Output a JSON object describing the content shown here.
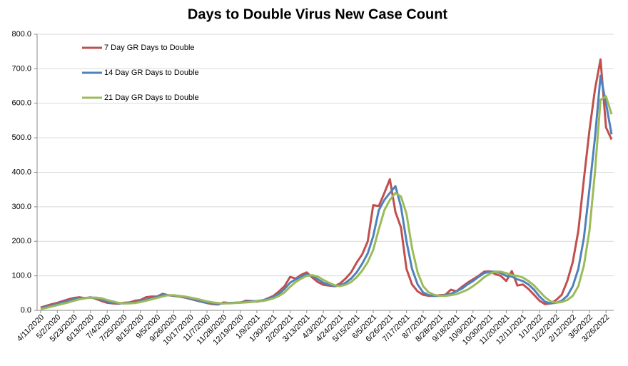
{
  "chart_data": {
    "type": "line",
    "title": "Days to Double Virus New Case Count",
    "categories": [
      "4/11/2020",
      null,
      null,
      "5/2/2020",
      null,
      null,
      "5/23/2020",
      null,
      null,
      "6/13/2020",
      null,
      null,
      "7/4/2020",
      null,
      null,
      "7/25/2020",
      null,
      null,
      "8/15/2020",
      null,
      null,
      "9/5/2020",
      null,
      null,
      "9/26/2020",
      null,
      null,
      "10/17/2020",
      null,
      null,
      "11/7/2020",
      null,
      null,
      "11/28/2020",
      null,
      null,
      "12/19/2020",
      null,
      null,
      "1/9/2021",
      null,
      null,
      "1/30/2021",
      null,
      null,
      "2/20/2021",
      null,
      null,
      "3/13/2021",
      null,
      null,
      "4/3/2021",
      null,
      null,
      "4/24/2021",
      null,
      null,
      "5/15/2021",
      null,
      null,
      "6/5/2021",
      null,
      null,
      "6/26/2021",
      null,
      null,
      "7/17/2021",
      null,
      null,
      "8/7/2021",
      null,
      null,
      "8/28/2021",
      null,
      null,
      "9/18/2021",
      null,
      null,
      "10/9/2021",
      null,
      null,
      "10/30/2021",
      null,
      null,
      "11/20/2021",
      null,
      null,
      "12/11/2021",
      null,
      null,
      "1/1/2022",
      null,
      null,
      "1/22/2022",
      null,
      null,
      "2/12/2022",
      null,
      null,
      "3/5/2022",
      null,
      null,
      "3/26/2022",
      null
    ],
    "series": [
      {
        "name": "7 Day GR Days to Double",
        "color": "#c0504d",
        "values": [
          8,
          13,
          18,
          22,
          27,
          32,
          36,
          38,
          35,
          38,
          33,
          27,
          22,
          20,
          19,
          22,
          23,
          28,
          30,
          38,
          40,
          40,
          48,
          44,
          42,
          40,
          37,
          33,
          29,
          25,
          21,
          18,
          17,
          23,
          21,
          22,
          22,
          28,
          27,
          25,
          28,
          35,
          42,
          55,
          70,
          97,
          92,
          103,
          110,
          95,
          82,
          74,
          72,
          70,
          78,
          92,
          110,
          138,
          162,
          200,
          305,
          302,
          340,
          380,
          285,
          240,
          120,
          75,
          55,
          45,
          42,
          42,
          44,
          45,
          60,
          55,
          68,
          80,
          90,
          100,
          112,
          113,
          105,
          100,
          85,
          114,
          72,
          75,
          62,
          45,
          28,
          18,
          20,
          30,
          45,
          85,
          140,
          230,
          380,
          520,
          640,
          727,
          530,
          495
        ]
      },
      {
        "name": "14 Day GR Days to Double",
        "color": "#4f81bd",
        "values": [
          6,
          10,
          14,
          19,
          23,
          28,
          32,
          35,
          36,
          37,
          35,
          31,
          26,
          22,
          20,
          20,
          21,
          23,
          27,
          31,
          35,
          39,
          45,
          44,
          43,
          41,
          38,
          34,
          30,
          26,
          22,
          20,
          19,
          20,
          21,
          22,
          23,
          25,
          26,
          27,
          29,
          33,
          39,
          48,
          62,
          80,
          90,
          98,
          104,
          100,
          90,
          80,
          74,
          70,
          72,
          80,
          92,
          110,
          135,
          165,
          215,
          290,
          320,
          340,
          360,
          300,
          200,
          120,
          75,
          52,
          44,
          42,
          42,
          44,
          48,
          55,
          63,
          75,
          85,
          97,
          108,
          112,
          112,
          108,
          100,
          98,
          90,
          85,
          75,
          60,
          40,
          25,
          20,
          22,
          28,
          42,
          70,
          120,
          210,
          350,
          500,
          680,
          600,
          510
        ]
      },
      {
        "name": "21 Day GR Days to Double",
        "color": "#9bbb59",
        "values": [
          4,
          7,
          11,
          15,
          19,
          23,
          28,
          32,
          35,
          37,
          37,
          35,
          30,
          26,
          22,
          20,
          20,
          21,
          24,
          28,
          32,
          36,
          40,
          44,
          44,
          42,
          40,
          37,
          34,
          30,
          26,
          23,
          21,
          20,
          20,
          21,
          22,
          23,
          24,
          26,
          27,
          30,
          35,
          42,
          52,
          68,
          82,
          92,
          100,
          102,
          98,
          88,
          80,
          73,
          70,
          74,
          82,
          96,
          115,
          140,
          175,
          235,
          290,
          320,
          340,
          330,
          280,
          180,
          110,
          70,
          52,
          45,
          42,
          42,
          44,
          47,
          53,
          60,
          70,
          82,
          96,
          106,
          112,
          112,
          108,
          102,
          100,
          95,
          85,
          72,
          55,
          38,
          26,
          22,
          24,
          30,
          42,
          70,
          130,
          230,
          400,
          610,
          620,
          568
        ]
      }
    ],
    "ylim": [
      0,
      800
    ],
    "yticks": [
      {
        "value": 0,
        "label": "0.0"
      },
      {
        "value": 100,
        "label": "100.0"
      },
      {
        "value": 200,
        "label": "200.0"
      },
      {
        "value": 300,
        "label": "300.0"
      },
      {
        "value": 400,
        "label": "400.0"
      },
      {
        "value": 500,
        "label": "500.0"
      },
      {
        "value": 600,
        "label": "600.0"
      },
      {
        "value": 700,
        "label": "700.0"
      },
      {
        "value": 800,
        "label": "800.0"
      }
    ],
    "grid": true,
    "legend": "top-left"
  }
}
